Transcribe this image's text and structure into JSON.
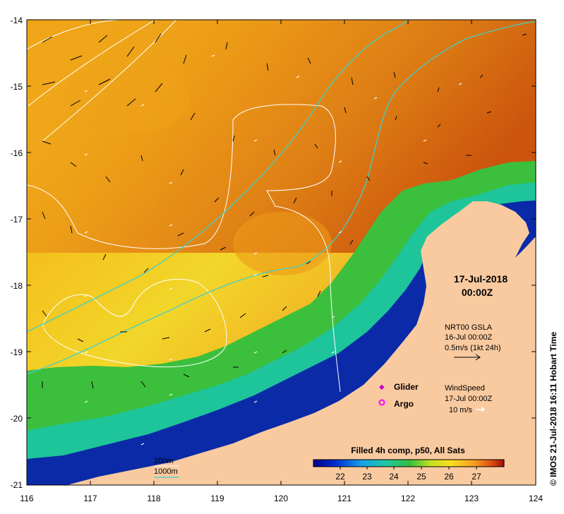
{
  "map": {
    "lon_ticks": [
      "116",
      "117",
      "118",
      "119",
      "120",
      "121",
      "122",
      "123",
      "124"
    ],
    "lat_ticks": [
      "-14",
      "-15",
      "-16",
      "-17",
      "-18",
      "-19",
      "-20",
      "-21"
    ]
  },
  "timestamp": {
    "date": "17-Jul-2018",
    "time": "00:00Z"
  },
  "currents_legend": {
    "source": "NRT00 GSLA",
    "date": "16-Jul 00:00Z",
    "scale": "0.5m/s (1kt 24h)"
  },
  "markers_legend": {
    "glider": "Glider",
    "argo": "Argo",
    "glider_color": "#cc00cc",
    "argo_color": "#ff00ff"
  },
  "wind_legend": {
    "title": "WindSpeed",
    "date": "17-Jul 00:00Z",
    "scale": "10 m/s"
  },
  "contours_legend": {
    "c200": "200m",
    "c1000": "1000m",
    "c200_color": "#ffffff",
    "c1000_color": "#40d0c8"
  },
  "colorbar": {
    "title": "Filled 4h comp, p50, All Sats",
    "labels": [
      "22",
      "23",
      "24",
      "25",
      "26",
      "27"
    ]
  },
  "credit": "© IMOS 21-Jul-2018 16:11 Hobart Time",
  "colors": {
    "land": "#f9caa0",
    "sst_warm": "#e77a12",
    "sst_mid": "#f4c21a",
    "sst_cool": "#16b86b",
    "sst_cold": "#0a1f9a"
  }
}
